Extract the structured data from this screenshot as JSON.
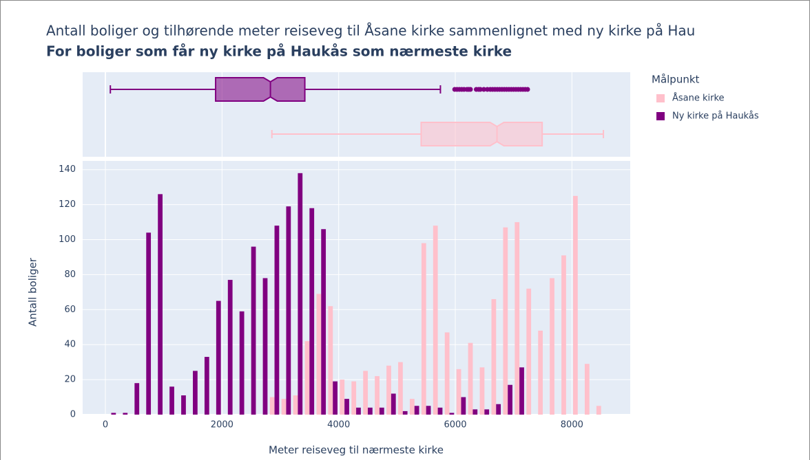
{
  "chart_data": {
    "type": "histogram",
    "title": "Antall boliger og tilhørende meter reiseveg til Åsane kirke sammenlignet med ny kirke på Hau",
    "subtitle": "For boliger som får ny kirke på Haukås som nærmeste kirke",
    "x_label": "Meter reiseveg til nærmeste kirke",
    "y_label": "Antall boliger",
    "legend_title": "Målpunkt",
    "legend": "right",
    "grid": true,
    "xlim": [
      -390,
      9000
    ],
    "ylim": [
      0,
      145
    ],
    "xticks": [
      0,
      2000,
      4000,
      6000,
      8000
    ],
    "yticks": [
      0,
      20,
      40,
      60,
      80,
      100,
      120,
      140
    ],
    "bins": [
      0,
      200,
      400,
      600,
      800,
      1000,
      1200,
      1400,
      1600,
      1800,
      2000,
      2200,
      2400,
      2600,
      2800,
      3000,
      3200,
      3400,
      3600,
      3800,
      4000,
      4200,
      4400,
      4600,
      4800,
      5000,
      5200,
      5400,
      5600,
      5800,
      6000,
      6200,
      6400,
      6600,
      6800,
      7000,
      7200,
      7400,
      7600,
      7800,
      8000,
      8200,
      8400,
      8600
    ],
    "series": [
      {
        "name": "Åsane kirke",
        "color": "#ffc0cb",
        "values": [
          0,
          0,
          0,
          0,
          0,
          0,
          0,
          0,
          0,
          0,
          0,
          0,
          0,
          0,
          10,
          9,
          11,
          42,
          69,
          62,
          20,
          19,
          25,
          22,
          28,
          30,
          9,
          98,
          108,
          47,
          26,
          41,
          27,
          66,
          107,
          110,
          72,
          48,
          78,
          91,
          125,
          29,
          5
        ],
        "box": {
          "min": 2855,
          "q1": 5415,
          "median": 6715,
          "q3": 7490,
          "max": 8540,
          "outliers": []
        }
      },
      {
        "name": "Ny kirke på Haukås",
        "color": "#800080",
        "values": [
          1,
          1,
          18,
          104,
          126,
          16,
          11,
          25,
          33,
          65,
          77,
          59,
          96,
          78,
          108,
          119,
          138,
          118,
          106,
          19,
          9,
          4,
          4,
          4,
          12,
          2,
          5,
          5,
          4,
          1,
          10,
          3,
          3,
          6,
          17,
          27,
          0,
          0,
          0,
          0,
          0,
          0,
          0
        ],
        "box": {
          "min": 85,
          "q1": 1890,
          "median": 2830,
          "q3": 3420,
          "max": 5745,
          "outliers": [
            5990,
            6030,
            6070,
            6110,
            6150,
            6200,
            6230,
            6260,
            6360,
            6400,
            6430,
            6490,
            6550,
            6600,
            6640,
            6680,
            6720,
            6760,
            6800,
            6840,
            6880,
            6920,
            6960,
            7000,
            7040,
            7080,
            7120,
            7160,
            7200,
            7240
          ]
        }
      }
    ]
  }
}
